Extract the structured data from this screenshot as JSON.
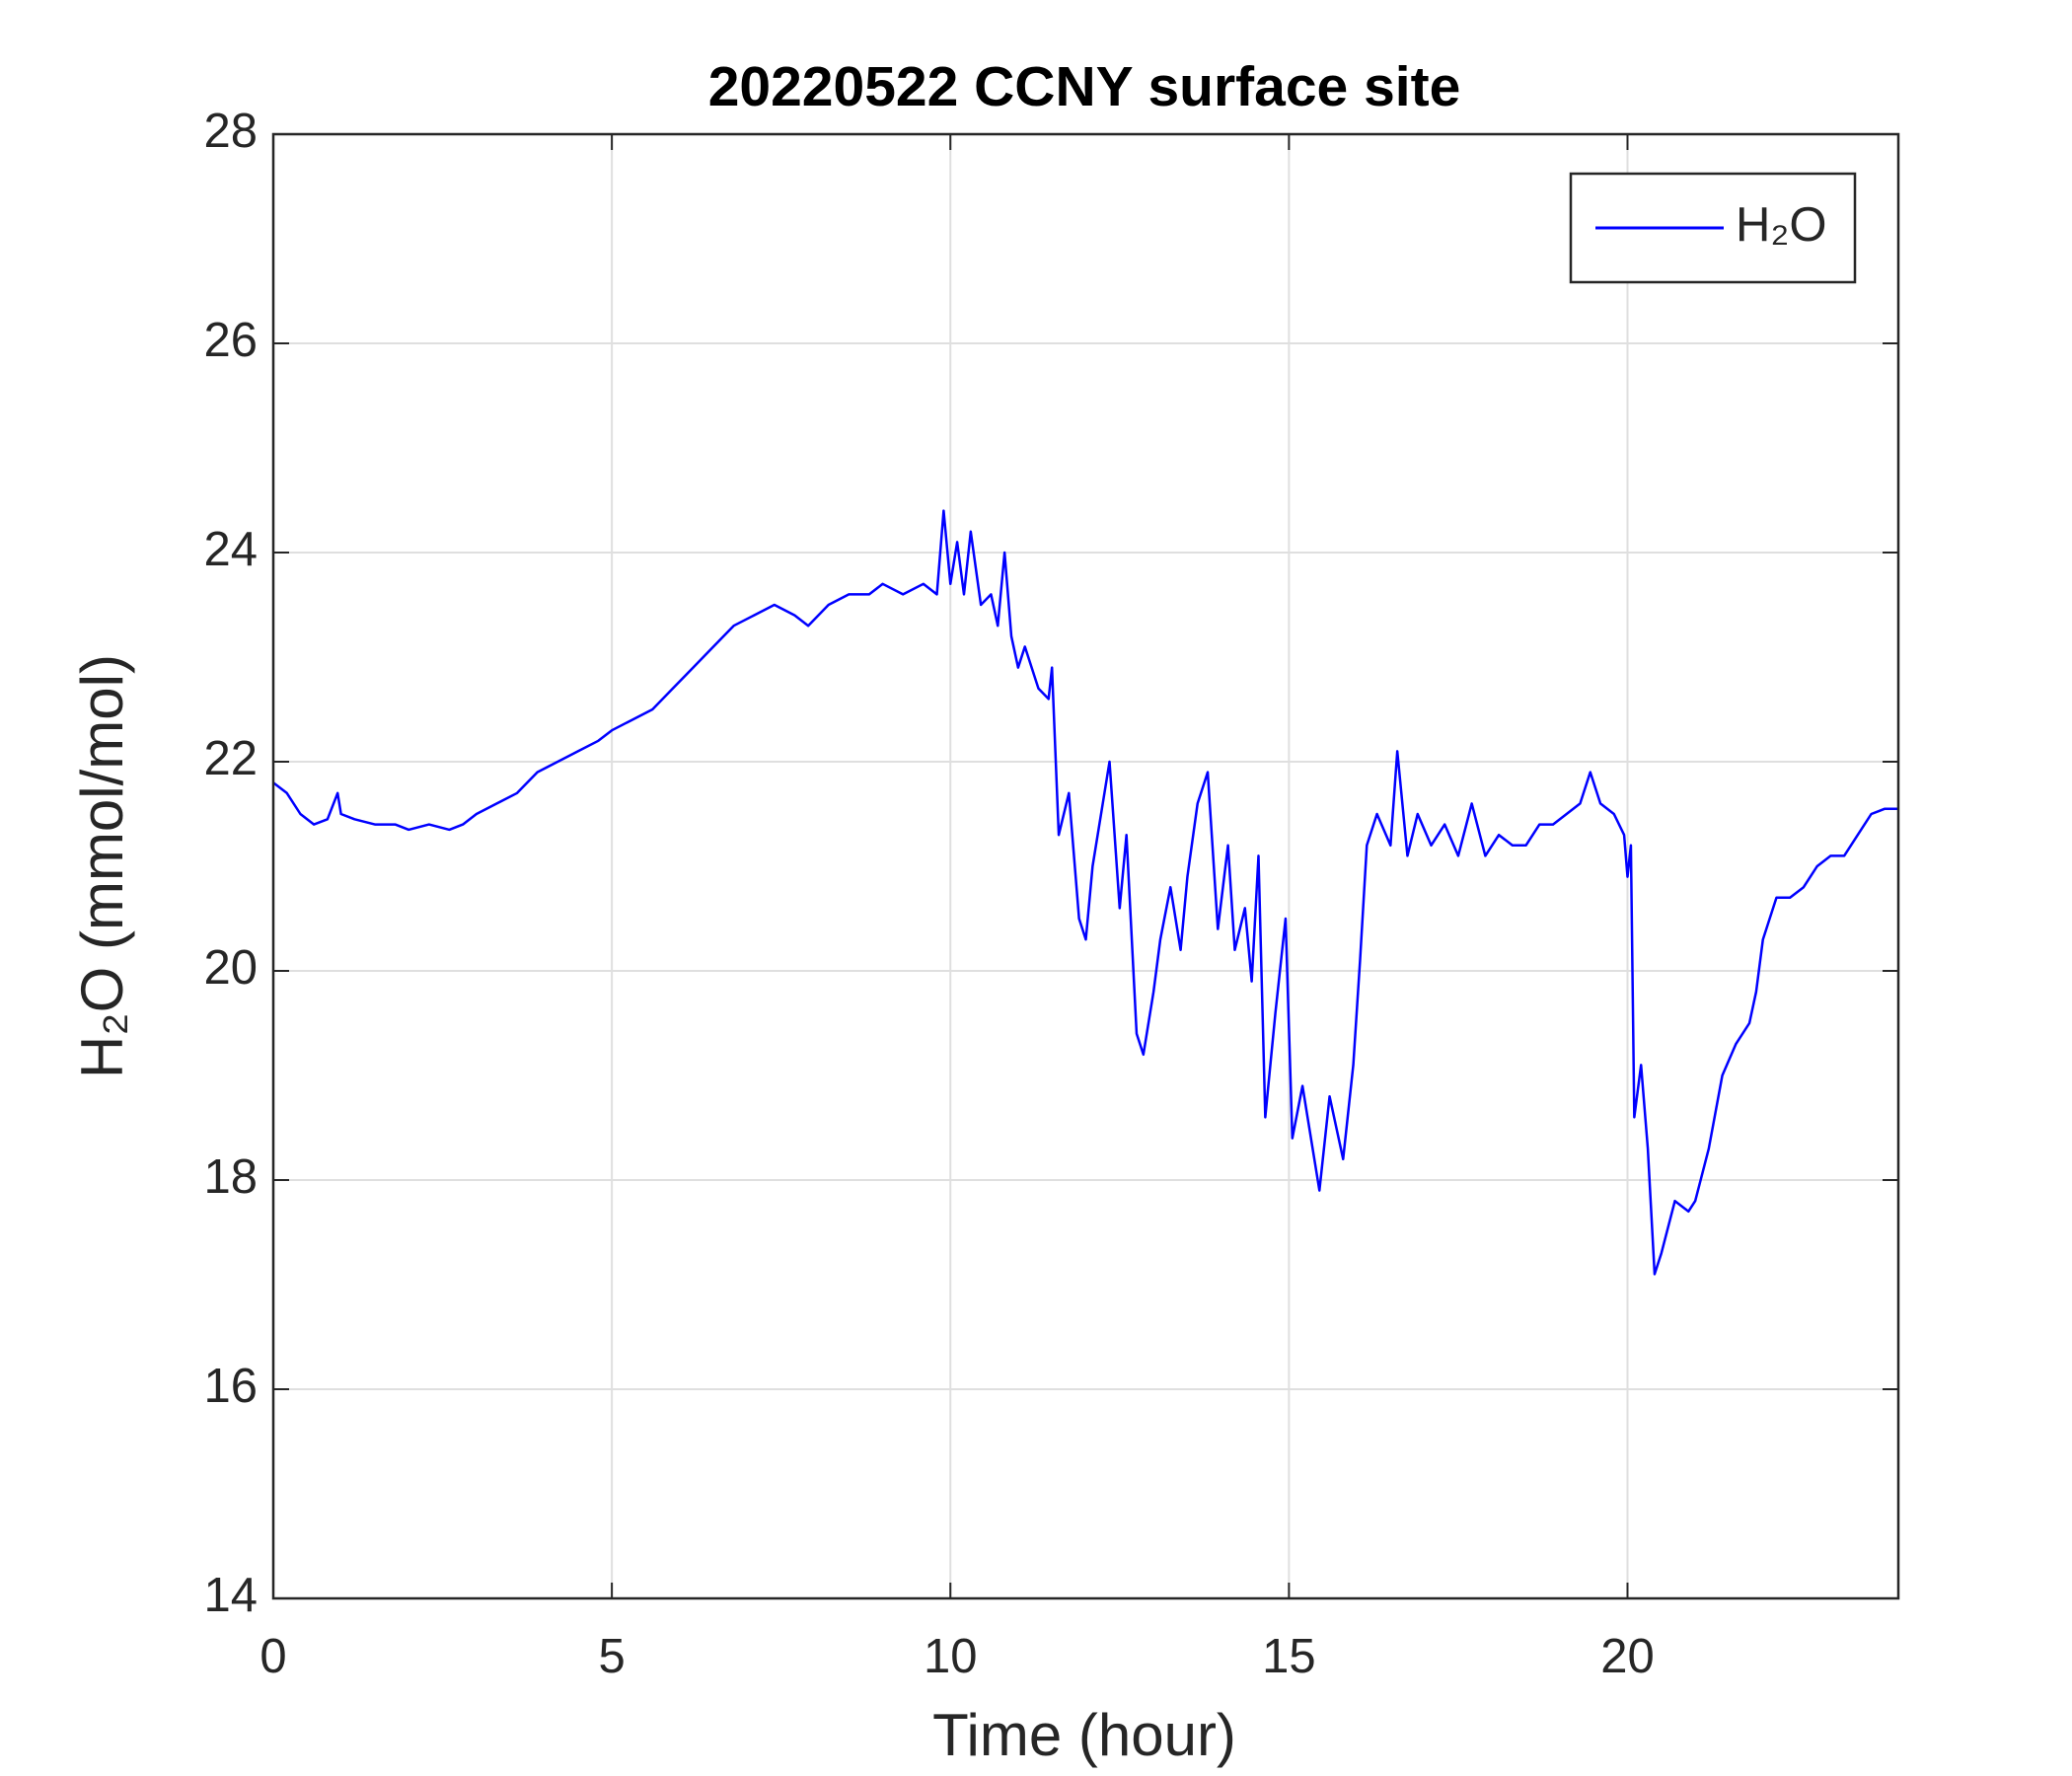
{
  "chart_data": {
    "type": "line",
    "title": "20220522 CCNY surface site",
    "xlabel": "Time (hour)",
    "ylabel": "H₂O (mmol/mol)",
    "x": [
      0,
      0.2,
      0.4,
      0.6,
      0.8,
      0.95,
      1.0,
      1.2,
      1.5,
      1.8,
      2.0,
      2.3,
      2.6,
      2.8,
      3.0,
      3.3,
      3.6,
      3.9,
      4.2,
      4.5,
      4.8,
      5.0,
      5.3,
      5.6,
      5.9,
      6.2,
      6.5,
      6.8,
      7.1,
      7.4,
      7.7,
      7.9,
      8.2,
      8.5,
      8.8,
      9.0,
      9.3,
      9.6,
      9.8,
      9.9,
      10.0,
      10.1,
      10.2,
      10.3,
      10.45,
      10.6,
      10.7,
      10.8,
      10.9,
      11.0,
      11.1,
      11.3,
      11.45,
      11.5,
      11.6,
      11.75,
      11.9,
      12.0,
      12.1,
      12.25,
      12.35,
      12.5,
      12.6,
      12.75,
      12.85,
      13.0,
      13.1,
      13.25,
      13.4,
      13.5,
      13.65,
      13.8,
      13.95,
      14.1,
      14.2,
      14.35,
      14.45,
      14.55,
      14.65,
      14.8,
      14.95,
      15.05,
      15.2,
      15.35,
      15.45,
      15.6,
      15.8,
      15.95,
      16.05,
      16.15,
      16.3,
      16.5,
      16.6,
      16.75,
      16.9,
      17.1,
      17.3,
      17.5,
      17.7,
      17.9,
      18.1,
      18.3,
      18.5,
      18.7,
      18.9,
      19.1,
      19.3,
      19.45,
      19.6,
      19.8,
      19.95,
      20.0,
      20.05,
      20.1,
      20.2,
      20.3,
      20.4,
      20.5,
      20.7,
      20.9,
      21.0,
      21.2,
      21.4,
      21.6,
      21.8,
      21.9,
      22.0,
      22.2,
      22.4,
      22.6,
      22.8,
      23.0,
      23.2,
      23.4,
      23.6,
      23.8,
      24.0
    ],
    "series": [
      {
        "name": "H₂O",
        "color": "#0000ff",
        "values": [
          21.8,
          21.7,
          21.5,
          21.4,
          21.45,
          21.7,
          21.5,
          21.45,
          21.4,
          21.4,
          21.35,
          21.4,
          21.35,
          21.4,
          21.5,
          21.6,
          21.7,
          21.9,
          22.0,
          22.1,
          22.2,
          22.3,
          22.4,
          22.5,
          22.7,
          22.9,
          23.1,
          23.3,
          23.4,
          23.5,
          23.4,
          23.3,
          23.5,
          23.6,
          23.6,
          23.7,
          23.6,
          23.7,
          23.6,
          24.4,
          23.7,
          24.1,
          23.6,
          24.2,
          23.5,
          23.6,
          23.3,
          24.0,
          23.2,
          22.9,
          23.1,
          22.7,
          22.6,
          22.9,
          21.3,
          21.7,
          20.5,
          20.3,
          21.0,
          21.6,
          22.0,
          20.6,
          21.3,
          19.4,
          19.2,
          19.8,
          20.3,
          20.8,
          20.2,
          20.9,
          21.6,
          21.9,
          20.4,
          21.2,
          20.2,
          20.6,
          19.9,
          21.1,
          18.6,
          19.6,
          20.5,
          18.4,
          18.9,
          18.3,
          17.9,
          18.8,
          18.2,
          19.1,
          20.1,
          21.2,
          21.5,
          21.2,
          22.1,
          21.1,
          21.5,
          21.2,
          21.4,
          21.1,
          21.6,
          21.1,
          21.3,
          21.2,
          21.2,
          21.4,
          21.4,
          21.5,
          21.6,
          21.9,
          21.6,
          21.5,
          21.3,
          20.9,
          21.2,
          18.6,
          19.1,
          18.3,
          17.1,
          17.3,
          17.8,
          17.7,
          17.8,
          18.3,
          19.0,
          19.3,
          19.5,
          19.8,
          20.3,
          20.7,
          20.7,
          20.8,
          21.0,
          21.1,
          21.1,
          21.3,
          21.5,
          21.55,
          21.55
        ]
      }
    ],
    "xlim": [
      0,
      24
    ],
    "xticks": [
      0,
      5,
      10,
      15,
      20
    ],
    "ylim": [
      14,
      28
    ],
    "yticks": [
      14,
      16,
      18,
      20,
      22,
      24,
      26,
      28
    ],
    "grid": true,
    "legend": "northeast"
  }
}
